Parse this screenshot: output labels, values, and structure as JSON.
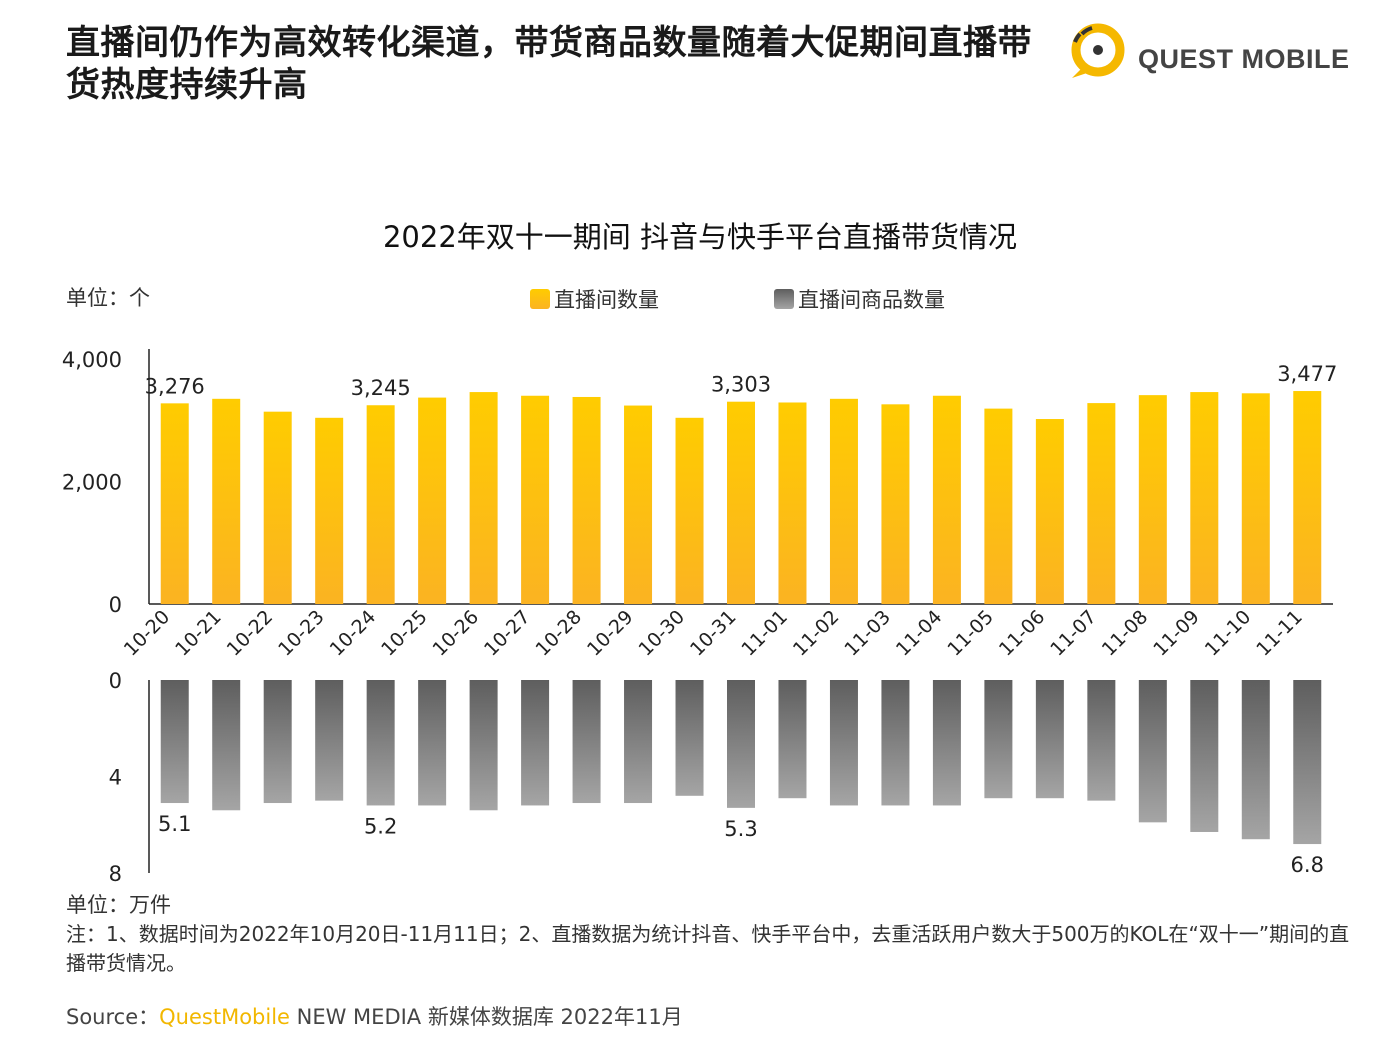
{
  "header": {
    "headline": "直播间仍作为高效转化渠道，带货商品数量随着大促期间直播带货热度持续升高",
    "brand_name": "QUEST MOBILE"
  },
  "colors": {
    "bar_top": "#ffcc00",
    "bar_bottom": "#fbb322",
    "gray_top": "#5e5e5e",
    "gray_bottom": "#a5a5a5",
    "brand": "#f5b800"
  },
  "chart_data": {
    "type": "bar",
    "title": "2022年双十一期间 抖音与快手平台直播带货情况",
    "categories": [
      "10-20",
      "10-21",
      "10-22",
      "10-23",
      "10-24",
      "10-25",
      "10-26",
      "10-27",
      "10-28",
      "10-29",
      "10-30",
      "10-31",
      "11-01",
      "11-02",
      "11-03",
      "11-04",
      "11-05",
      "11-06",
      "11-07",
      "11-08",
      "11-09",
      "11-10",
      "11-11"
    ],
    "series": [
      {
        "name": "直播间数量",
        "unit": "单位：个",
        "values": [
          3276,
          3350,
          3140,
          3040,
          3245,
          3370,
          3460,
          3400,
          3380,
          3240,
          3040,
          3303,
          3290,
          3350,
          3260,
          3400,
          3190,
          3020,
          3280,
          3410,
          3460,
          3440,
          3477
        ],
        "ylim": [
          0,
          4000
        ],
        "ticks": [
          "0",
          "2,000",
          "4,000"
        ],
        "labels": {
          "0": "3,276",
          "4": "3,245",
          "11": "3,303",
          "22": "3,477"
        }
      },
      {
        "name": "直播间商品数量",
        "unit": "单位：万件",
        "values": [
          5.1,
          5.4,
          5.1,
          5.0,
          5.2,
          5.2,
          5.4,
          5.2,
          5.1,
          5.1,
          4.8,
          5.3,
          4.9,
          5.2,
          5.2,
          5.2,
          4.9,
          4.9,
          5.0,
          5.9,
          6.3,
          6.6,
          6.8
        ],
        "ylim": [
          0,
          8
        ],
        "ticks": [
          "0",
          "4",
          "8"
        ],
        "labels": {
          "0": "5.1",
          "4": "5.2",
          "11": "5.3",
          "22": "6.8"
        }
      }
    ]
  },
  "unit_top": "单位：个",
  "legend": {
    "item1": "直播间数量",
    "item2": "直播间商品数量"
  },
  "unit_bottom": "单位：万件",
  "note": "注：1、数据时间为2022年10月20日-11月11日；2、直播数据为统计抖音、快手平台中，去重活跃用户数大于500万的KOL在“双十一”期间的直播带货情况。",
  "source": {
    "prefix": "Source：",
    "brand": "QuestMobile",
    "suffix": " NEW MEDIA 新媒体数据库 2022年11月"
  }
}
